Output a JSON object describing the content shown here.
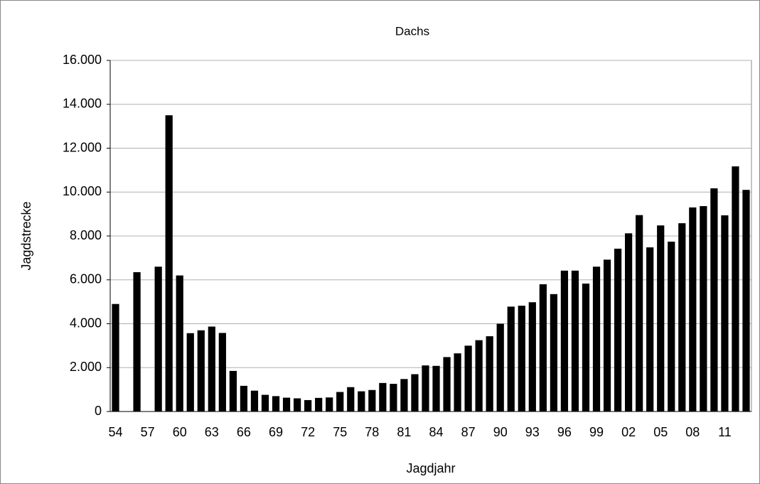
{
  "chart_data": {
    "type": "bar",
    "title": "Dachs",
    "x_label": "Jagdjahr",
    "y_label": "Jagdstrecke",
    "categories": [
      "54",
      null,
      null,
      "57",
      null,
      null,
      "60",
      null,
      null,
      "63",
      null,
      null,
      "66",
      null,
      null,
      "69",
      null,
      null,
      "72",
      null,
      null,
      "75",
      null,
      null,
      "78",
      null,
      null,
      "81",
      null,
      null,
      "84",
      null,
      null,
      "87",
      null,
      null,
      "90",
      null,
      null,
      "93",
      null,
      null,
      "96",
      null,
      null,
      "99",
      null,
      null,
      "02",
      null,
      null,
      "05",
      null,
      null,
      "08",
      null,
      null,
      "11",
      null,
      null
    ],
    "values": [
      4900,
      0,
      6350,
      0,
      6600,
      13500,
      6200,
      3570,
      3700,
      3870,
      3580,
      1850,
      1170,
      950,
      760,
      700,
      630,
      600,
      520,
      620,
      640,
      890,
      1110,
      920,
      980,
      1300,
      1260,
      1480,
      1700,
      2100,
      2080,
      2480,
      2650,
      3000,
      3250,
      3430,
      4000,
      4780,
      4820,
      4980,
      5800,
      5350,
      6420,
      6420,
      5830,
      6600,
      6920,
      7420,
      8120,
      8950,
      7480,
      8480,
      7740,
      8580,
      9300,
      9360,
      10170,
      8940,
      11170,
      10100
    ],
    "color": "#000000",
    "ylim": [
      0,
      16000
    ],
    "yticks": [
      0,
      {
        "value": 2000,
        "label": "2.000"
      },
      {
        "value": 4000,
        "label": "4.000"
      },
      {
        "value": 6000,
        "label": "6.000"
      },
      {
        "value": 8000,
        "label": "8.000"
      },
      {
        "value": 10000,
        "label": "10.000"
      },
      {
        "value": 12000,
        "label": "12.000"
      },
      {
        "value": 14000,
        "label": "14.000"
      },
      {
        "value": 16000,
        "label": "16.000"
      }
    ],
    "grid": true
  }
}
